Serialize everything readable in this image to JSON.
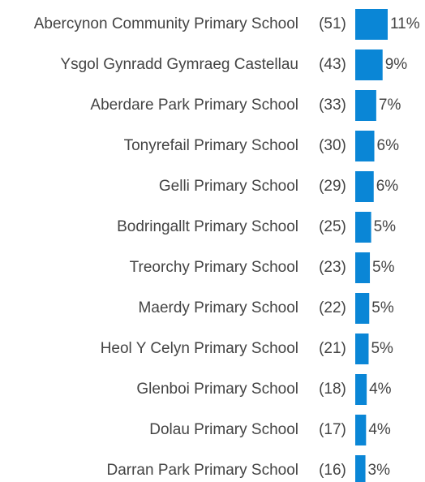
{
  "chart_data": {
    "type": "bar",
    "orientation": "horizontal",
    "color": "#0a86d6",
    "categories": [
      "Abercynon Community Primary School",
      "Ysgol Gynradd Gymraeg Castellau",
      "Aberdare Park Primary School",
      "Tonyrefail Primary School",
      "Gelli Primary School",
      "Bodringallt Primary School",
      "Treorchy Primary School",
      "Maerdy Primary School",
      "Heol Y Celyn Primary School",
      "Glenboi Primary School",
      "Dolau Primary School",
      "Darran Park Primary School"
    ],
    "values": [
      51,
      43,
      33,
      30,
      29,
      25,
      23,
      22,
      21,
      18,
      17,
      16
    ],
    "value_labels": [
      "(51)",
      "(43)",
      "(33)",
      "(30)",
      "(29)",
      "(25)",
      "(23)",
      "(22)",
      "(21)",
      "(18)",
      "(17)",
      "(16)"
    ],
    "percentages": [
      11,
      9,
      7,
      6,
      6,
      5,
      5,
      5,
      5,
      4,
      4,
      3
    ],
    "percentage_labels": [
      "11%",
      "9%",
      "7%",
      "6%",
      "6%",
      "5%",
      "5%",
      "5%",
      "5%",
      "4%",
      "4%",
      "3%"
    ]
  }
}
